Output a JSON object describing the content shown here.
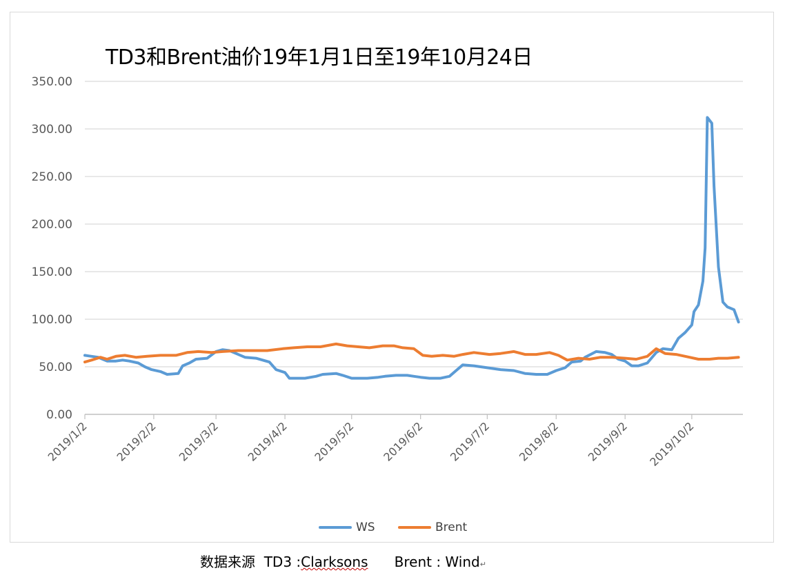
{
  "chart_data": {
    "type": "line",
    "title": "TD3和Brent油价19年1月1日至19年10月24日",
    "ylim": [
      0,
      350
    ],
    "yticks": [
      "0.00",
      "50.00",
      "100.00",
      "150.00",
      "200.00",
      "250.00",
      "300.00",
      "350.00"
    ],
    "xlim": [
      "2019/1/2",
      "2019/10/25"
    ],
    "xticks": [
      "2019/1/2",
      "2019/2/2",
      "2019/3/2",
      "2019/4/2",
      "2019/5/2",
      "2019/6/2",
      "2019/7/2",
      "2019/8/2",
      "2019/9/2",
      "2019/10/2"
    ],
    "grid": "horizontal",
    "legend_position": "bottom",
    "series": [
      {
        "name": "WS",
        "color": "#5b9bd5",
        "points": [
          [
            "2019/1/2",
            62
          ],
          [
            "2019/1/5",
            61
          ],
          [
            "2019/1/8",
            60
          ],
          [
            "2019/1/10",
            58
          ],
          [
            "2019/1/12",
            56
          ],
          [
            "2019/1/16",
            56
          ],
          [
            "2019/1/19",
            57
          ],
          [
            "2019/1/22",
            56
          ],
          [
            "2019/1/26",
            54
          ],
          [
            "2019/1/29",
            50
          ],
          [
            "2019/2/1",
            47
          ],
          [
            "2019/2/5",
            45
          ],
          [
            "2019/2/8",
            42
          ],
          [
            "2019/2/13",
            43
          ],
          [
            "2019/2/15",
            51
          ],
          [
            "2019/2/18",
            54
          ],
          [
            "2019/2/21",
            58
          ],
          [
            "2019/2/26",
            59
          ],
          [
            "2019/3/2",
            66
          ],
          [
            "2019/3/5",
            68
          ],
          [
            "2019/3/8",
            67
          ],
          [
            "2019/3/12",
            63
          ],
          [
            "2019/3/15",
            60
          ],
          [
            "2019/3/20",
            59
          ],
          [
            "2019/3/23",
            57
          ],
          [
            "2019/3/26",
            55
          ],
          [
            "2019/3/29",
            47
          ],
          [
            "2019/4/2",
            44
          ],
          [
            "2019/4/4",
            38
          ],
          [
            "2019/4/11",
            38
          ],
          [
            "2019/4/16",
            40
          ],
          [
            "2019/4/19",
            42
          ],
          [
            "2019/4/25",
            43
          ],
          [
            "2019/4/28",
            41
          ],
          [
            "2019/5/2",
            38
          ],
          [
            "2019/5/9",
            38
          ],
          [
            "2019/5/14",
            39
          ],
          [
            "2019/5/17",
            40
          ],
          [
            "2019/5/22",
            41
          ],
          [
            "2019/5/27",
            41
          ],
          [
            "2019/5/30",
            40
          ],
          [
            "2019/6/2",
            39
          ],
          [
            "2019/6/6",
            38
          ],
          [
            "2019/6/11",
            38
          ],
          [
            "2019/6/15",
            40
          ],
          [
            "2019/6/18",
            46
          ],
          [
            "2019/6/21",
            52
          ],
          [
            "2019/6/26",
            51
          ],
          [
            "2019/7/2",
            49
          ],
          [
            "2019/7/8",
            47
          ],
          [
            "2019/7/14",
            46
          ],
          [
            "2019/7/19",
            43
          ],
          [
            "2019/7/24",
            42
          ],
          [
            "2019/7/29",
            42
          ],
          [
            "2019/8/2",
            46
          ],
          [
            "2019/8/6",
            49
          ],
          [
            "2019/8/9",
            55
          ],
          [
            "2019/8/13",
            56
          ],
          [
            "2019/8/15",
            60
          ],
          [
            "2019/8/20",
            66
          ],
          [
            "2019/8/24",
            65
          ],
          [
            "2019/8/27",
            63
          ],
          [
            "2019/8/30",
            58
          ],
          [
            "2019/9/2",
            56
          ],
          [
            "2019/9/5",
            51
          ],
          [
            "2019/9/8",
            51
          ],
          [
            "2019/9/12",
            54
          ],
          [
            "2019/9/16",
            65
          ],
          [
            "2019/9/19",
            69
          ],
          [
            "2019/9/23",
            68
          ],
          [
            "2019/9/26",
            80
          ],
          [
            "2019/9/29",
            86
          ],
          [
            "2019/10/2",
            94
          ],
          [
            "2019/10/3",
            108
          ],
          [
            "2019/10/5",
            115
          ],
          [
            "2019/10/7",
            140
          ],
          [
            "2019/10/8",
            175
          ],
          [
            "2019/10/9",
            312
          ],
          [
            "2019/10/11",
            306
          ],
          [
            "2019/10/12",
            240
          ],
          [
            "2019/10/14",
            155
          ],
          [
            "2019/10/16",
            118
          ],
          [
            "2019/10/18",
            113
          ],
          [
            "2019/10/21",
            110
          ],
          [
            "2019/10/23",
            97
          ]
        ]
      },
      {
        "name": "Brent",
        "color": "#ed7d31",
        "points": [
          [
            "2019/1/2",
            55
          ],
          [
            "2019/1/5",
            57
          ],
          [
            "2019/1/9",
            60
          ],
          [
            "2019/1/12",
            58
          ],
          [
            "2019/1/16",
            61
          ],
          [
            "2019/1/20",
            62
          ],
          [
            "2019/1/25",
            60
          ],
          [
            "2019/1/30",
            61
          ],
          [
            "2019/2/5",
            62
          ],
          [
            "2019/2/12",
            62
          ],
          [
            "2019/2/17",
            65
          ],
          [
            "2019/2/22",
            66
          ],
          [
            "2019/2/28",
            65
          ],
          [
            "2019/3/5",
            66
          ],
          [
            "2019/3/12",
            67
          ],
          [
            "2019/3/18",
            67
          ],
          [
            "2019/3/25",
            67
          ],
          [
            "2019/4/1",
            69
          ],
          [
            "2019/4/6",
            70
          ],
          [
            "2019/4/12",
            71
          ],
          [
            "2019/4/18",
            71
          ],
          [
            "2019/4/25",
            74
          ],
          [
            "2019/4/30",
            72
          ],
          [
            "2019/5/5",
            71
          ],
          [
            "2019/5/10",
            70
          ],
          [
            "2019/5/16",
            72
          ],
          [
            "2019/5/21",
            72
          ],
          [
            "2019/5/25",
            70
          ],
          [
            "2019/5/30",
            69
          ],
          [
            "2019/6/3",
            62
          ],
          [
            "2019/6/7",
            61
          ],
          [
            "2019/6/12",
            62
          ],
          [
            "2019/6/17",
            61
          ],
          [
            "2019/6/21",
            63
          ],
          [
            "2019/6/26",
            65
          ],
          [
            "2019/7/3",
            63
          ],
          [
            "2019/7/8",
            64
          ],
          [
            "2019/7/14",
            66
          ],
          [
            "2019/7/19",
            63
          ],
          [
            "2019/7/24",
            63
          ],
          [
            "2019/7/30",
            65
          ],
          [
            "2019/8/3",
            62
          ],
          [
            "2019/8/7",
            57
          ],
          [
            "2019/8/12",
            59
          ],
          [
            "2019/8/17",
            58
          ],
          [
            "2019/8/22",
            60
          ],
          [
            "2019/8/27",
            60
          ],
          [
            "2019/9/2",
            59
          ],
          [
            "2019/9/7",
            58
          ],
          [
            "2019/9/12",
            61
          ],
          [
            "2019/9/16",
            69
          ],
          [
            "2019/9/20",
            64
          ],
          [
            "2019/9/25",
            63
          ],
          [
            "2019/10/1",
            60
          ],
          [
            "2019/10/5",
            58
          ],
          [
            "2019/10/10",
            58
          ],
          [
            "2019/10/14",
            59
          ],
          [
            "2019/10/18",
            59
          ],
          [
            "2019/10/23",
            60
          ]
        ]
      }
    ]
  },
  "source": {
    "prefix": "数据来源  TD3 :",
    "td3_source": "Clarksons",
    "brent_label": "Brent : Wind",
    "mark": "↵"
  }
}
